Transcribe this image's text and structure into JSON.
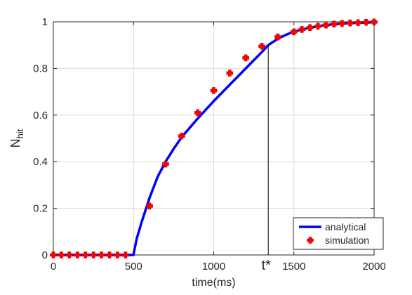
{
  "chart_data": {
    "type": "line",
    "xlabel": "time(ms)",
    "ylabel": {
      "main": "N",
      "sub": "hit"
    },
    "xlim": [
      0,
      2000
    ],
    "ylim": [
      0,
      1
    ],
    "x_ticks": [
      0,
      500,
      1000,
      1500,
      2000
    ],
    "x_tick_labels": [
      "0",
      "500",
      "1000",
      "1500",
      "2000"
    ],
    "y_ticks": [
      0,
      0.2,
      0.4,
      0.6,
      0.8,
      1
    ],
    "y_tick_labels": [
      "0",
      "0.2",
      "0.4",
      "0.6",
      "0.8",
      "1"
    ],
    "grid": true,
    "legend_position": "bottom-right",
    "series": [
      {
        "name": "analytical",
        "kind": "line",
        "color": "#0000ff",
        "x": [
          0,
          100,
          200,
          300,
          400,
          500,
          505,
          520,
          550,
          600,
          650,
          700,
          750,
          800,
          850,
          900,
          1000,
          1100,
          1200,
          1300,
          1340,
          1400,
          1450,
          1500,
          1600,
          1700,
          1800,
          1900,
          2000
        ],
        "y": [
          0,
          0,
          0,
          0,
          0,
          0,
          0.02,
          0.07,
          0.14,
          0.245,
          0.335,
          0.4,
          0.455,
          0.505,
          0.545,
          0.585,
          0.66,
          0.73,
          0.8,
          0.87,
          0.9,
          0.927,
          0.944,
          0.958,
          0.975,
          0.986,
          0.992,
          0.996,
          0.998
        ]
      },
      {
        "name": "simulation",
        "kind": "marker",
        "color": "#ff0000",
        "x": [
          0,
          50,
          100,
          150,
          200,
          250,
          300,
          350,
          400,
          450,
          600,
          700,
          800,
          900,
          1000,
          1100,
          1200,
          1300,
          1400,
          1500,
          1550,
          1600,
          1650,
          1700,
          1750,
          1800,
          1850,
          1900,
          1950,
          2000
        ],
        "y": [
          0,
          0,
          0,
          0,
          0,
          0,
          0,
          0,
          0,
          0,
          0.21,
          0.39,
          0.51,
          0.61,
          0.705,
          0.78,
          0.845,
          0.895,
          0.935,
          0.957,
          0.967,
          0.975,
          0.981,
          0.986,
          0.99,
          0.993,
          0.995,
          0.996,
          0.998,
          0.999
        ]
      }
    ],
    "annotation": {
      "text": "t*",
      "x": 1340
    }
  }
}
